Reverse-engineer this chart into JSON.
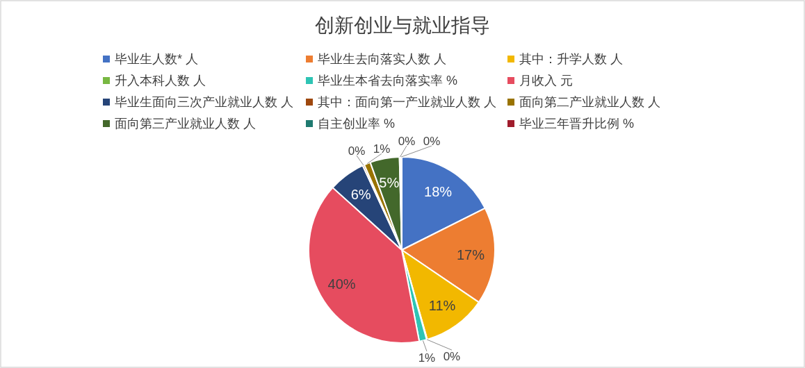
{
  "chart_data": {
    "type": "pie",
    "title": "创新创业与就业指导",
    "categories": [
      "毕业生人数* 人",
      "毕业生去向落实人数 人",
      "其中：升学人数 人",
      "升入本科人数 人",
      "毕业生本省去向落实率 %",
      "月收入 元",
      "毕业生面向三次产业就业人数 人",
      "其中：面向第一产业就业人数 人",
      "面向第二产业就业人数 人",
      "面向第三产业就业人数 人",
      "自主创业率 %",
      "毕业三年晋升比例 %"
    ],
    "values": [
      17.6,
      16.9,
      11.1,
      0.1,
      1.3,
      39.7,
      6.4,
      0.3,
      1.1,
      5.1,
      0.2,
      0.2
    ],
    "value_labels": [
      "18%",
      "17%",
      "11%",
      "0%",
      "1%",
      "40%",
      "6%",
      "0%",
      "1%",
      "5%",
      "0%",
      "0%"
    ],
    "colors": [
      "#4472c4",
      "#ed7d31",
      "#f2b800",
      "#78b842",
      "#2ec4b4",
      "#e64c5f",
      "#264478",
      "#9e480e",
      "#997300",
      "#43682b",
      "#1f7a70",
      "#a01c2c"
    ],
    "legend": "top"
  }
}
